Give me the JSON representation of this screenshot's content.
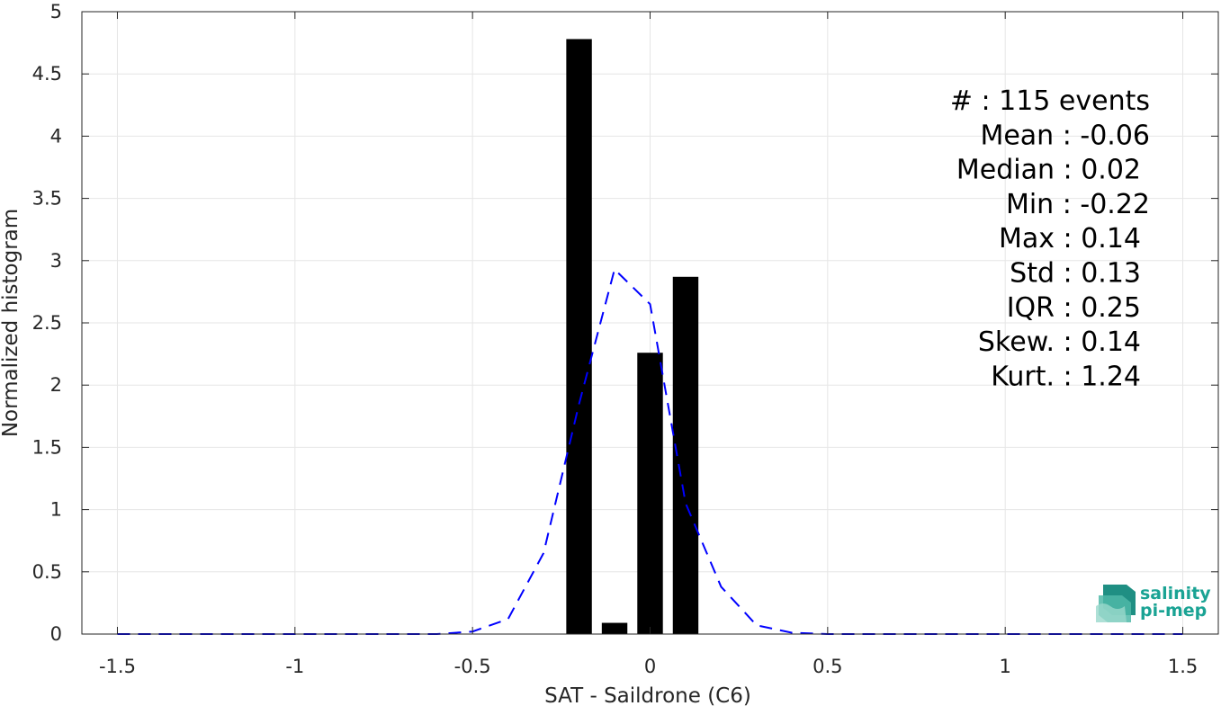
{
  "chart_data": {
    "type": "bar",
    "xlabel": "SAT - Saildrone (C6)",
    "ylabel": "Normalized histogram",
    "xlim": [
      -1.6,
      1.6
    ],
    "ylim": [
      0,
      5
    ],
    "xticks": [
      -1.5,
      -1,
      -0.5,
      0,
      0.5,
      1,
      1.5
    ],
    "xtick_labels": [
      "-1.5",
      "-1",
      "-0.5",
      "0",
      "0.5",
      "1",
      "1.5"
    ],
    "yticks": [
      0,
      0.5,
      1,
      1.5,
      2,
      2.5,
      3,
      3.5,
      4,
      4.5,
      5
    ],
    "ytick_labels": [
      "0",
      "0.5",
      "1",
      "1.5",
      "2",
      "2.5",
      "3",
      "3.5",
      "4",
      "4.5",
      "5"
    ],
    "grid": true,
    "bars": {
      "name": "",
      "color": "#000000",
      "bin_width": 0.1,
      "centers": [
        -0.2,
        -0.1,
        0.0,
        0.1
      ],
      "values": [
        4.78,
        0.09,
        2.26,
        2.87
      ]
    },
    "curve": {
      "name": "",
      "color": "#0000ff",
      "style": "dashed",
      "x": [
        -1.5,
        -1.4,
        -1.3,
        -1.2,
        -1.1,
        -1.0,
        -0.9,
        -0.8,
        -0.7,
        -0.6,
        -0.5,
        -0.4,
        -0.3,
        -0.2,
        -0.1,
        0.0,
        0.1,
        0.2,
        0.3,
        0.4,
        0.5,
        0.6,
        0.7,
        0.8,
        0.9,
        1.0,
        1.1,
        1.2,
        1.3,
        1.4,
        1.5
      ],
      "y": [
        0,
        0,
        0,
        0,
        0,
        0,
        0,
        0,
        0,
        0,
        0.02,
        0.12,
        0.65,
        1.85,
        2.93,
        2.65,
        1.05,
        0.38,
        0.07,
        0.01,
        0,
        0,
        0,
        0,
        0,
        0,
        0,
        0,
        0,
        0,
        0
      ]
    },
    "annotations": [
      "#  : 115 events",
      "Mean : -0.06",
      "Median : 0.02",
      "Min : -0.22",
      "Max : 0.14",
      "Std : 0.13",
      "IQR : 0.25",
      "Skew. : 0.14",
      "Kurt. : 1.24"
    ]
  },
  "logo": {
    "line1": "salinity",
    "line2": "pi-mep"
  },
  "colors": {
    "grid": "#e6e6e6",
    "axis": "#262626",
    "logo_teal": "#1aa394"
  }
}
